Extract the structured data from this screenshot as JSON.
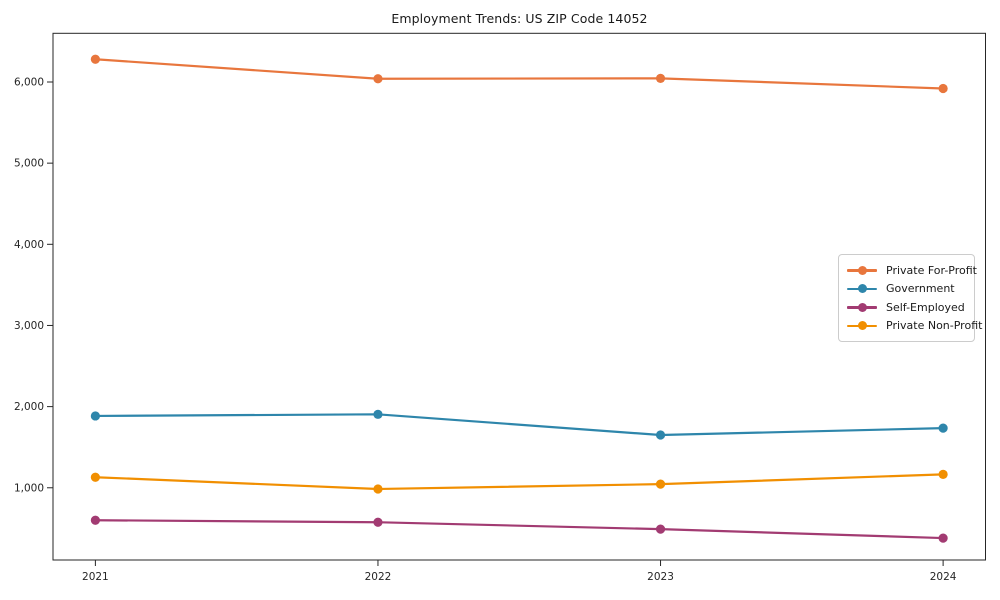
{
  "chart_data": {
    "type": "line",
    "title": "Employment Trends: US ZIP Code 14052",
    "x": [
      2021,
      2022,
      2023,
      2024
    ],
    "x_tick_labels": [
      "2021",
      "2022",
      "2023",
      "2024"
    ],
    "y_ticks": [
      1000,
      2000,
      3000,
      4000,
      5000,
      6000
    ],
    "y_tick_labels": [
      "1,000",
      "2,000",
      "3,000",
      "4,000",
      "5,000",
      "6,000"
    ],
    "series": [
      {
        "name": "Private For-Profit",
        "color": "#e8763d",
        "values": [
          6280,
          6040,
          6045,
          5920
        ]
      },
      {
        "name": "Government",
        "color": "#2e86ab",
        "values": [
          1885,
          1905,
          1650,
          1735
        ]
      },
      {
        "name": "Self-Employed",
        "color": "#a23b72",
        "values": [
          600,
          575,
          490,
          380
        ]
      },
      {
        "name": "Private Non-Profit",
        "color": "#f18f01",
        "values": [
          1130,
          985,
          1045,
          1165
        ]
      }
    ],
    "xlabel": "",
    "ylabel": "",
    "xlim": [
      2020.85,
      2024.15
    ],
    "ylim": [
      110,
      6600
    ],
    "grid": false,
    "legend_position": "center right",
    "marker": "circle",
    "background_color": "#ffffff",
    "axis_color": "#262626"
  }
}
